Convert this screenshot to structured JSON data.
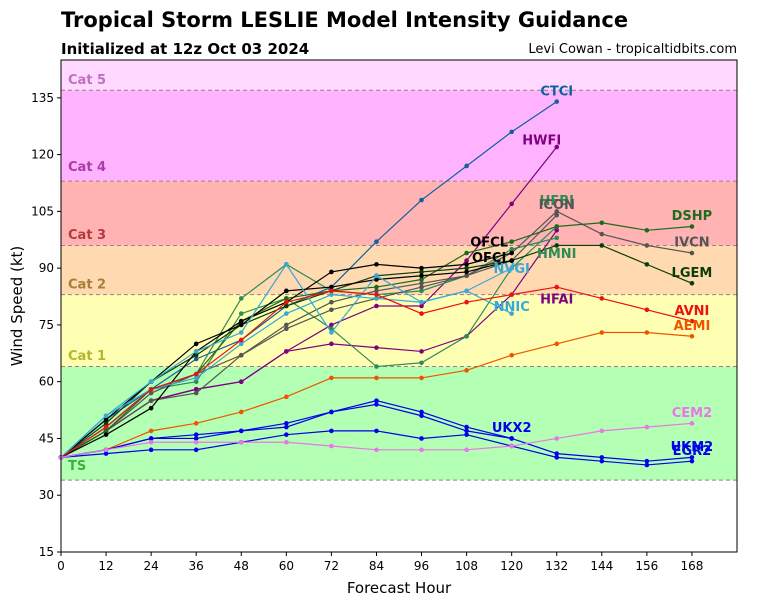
{
  "header": {
    "title": "Tropical Storm LESLIE Model Intensity Guidance",
    "subtitle": "Initialized at 12z Oct 03 2024",
    "credit": "Levi Cowan - tropicaltidbits.com"
  },
  "chart_data": {
    "type": "line",
    "title": "Tropical Storm LESLIE Model Intensity Guidance",
    "subtitle": "Initialized at 12z Oct 03 2024",
    "xlabel": "Forecast Hour",
    "ylabel": "Wind Speed (kt)",
    "xlim": [
      0,
      180
    ],
    "ylim": [
      15,
      145
    ],
    "xticks": [
      0,
      12,
      24,
      36,
      48,
      60,
      72,
      84,
      96,
      108,
      120,
      132,
      144,
      156,
      168
    ],
    "yticks": [
      15,
      30,
      45,
      60,
      75,
      90,
      105,
      120,
      135
    ],
    "grid": false,
    "bands": [
      {
        "label": "TS",
        "from": 34,
        "to": 64,
        "color": "#b3ffb3",
        "label_color": "#3cb043",
        "label_at": 38
      },
      {
        "label": "Cat 1",
        "from": 64,
        "to": 83,
        "color": "#ffffb3",
        "label_color": "#b5b52e",
        "label_at": 67
      },
      {
        "label": "Cat 2",
        "from": 83,
        "to": 96,
        "color": "#ffd9b0",
        "label_color": "#a97d3a",
        "label_at": 86
      },
      {
        "label": "Cat 3",
        "from": 96,
        "to": 113,
        "color": "#ffb3b3",
        "label_color": "#b23b3b",
        "label_at": 99
      },
      {
        "label": "Cat 4",
        "from": 113,
        "to": 137,
        "color": "#ffb3ff",
        "label_color": "#a83ca8",
        "label_at": 117
      },
      {
        "label": "Cat 5",
        "from": 137,
        "to": 145,
        "color": "#ffd9ff",
        "label_color": "#c070c0",
        "label_at": 140
      }
    ],
    "series": [
      {
        "name": "CTCI",
        "color": "#1060a0",
        "x": [
          0,
          12,
          24,
          36,
          48,
          60,
          72,
          84,
          96,
          108,
          120,
          132
        ],
        "y": [
          40,
          50,
          58,
          66,
          71,
          80,
          85,
          97,
          108,
          117,
          126,
          134
        ],
        "label_x": 132,
        "label_y": 137
      },
      {
        "name": "HWFI",
        "color": "#800080",
        "x": [
          0,
          12,
          24,
          36,
          48,
          60,
          72,
          84,
          96,
          108,
          120,
          132
        ],
        "y": [
          40,
          47,
          55,
          58,
          60,
          68,
          70,
          69,
          68,
          72,
          83,
          100
        ],
        "label_x": 128,
        "label_y": 124
      },
      {
        "name": "HFAI",
        "color": "#800080",
        "x": [
          0,
          12,
          24,
          36,
          48,
          60,
          72,
          84,
          96,
          108,
          120,
          132
        ],
        "y": [
          40,
          47,
          55,
          58,
          60,
          68,
          75,
          80,
          80,
          92,
          107,
          122
        ],
        "label_x": 132,
        "label_y": 82
      },
      {
        "name": "HFBI",
        "color": "#2e8b57",
        "x": [
          0,
          12,
          24,
          36,
          48,
          60,
          72,
          84,
          96,
          108,
          120,
          132
        ],
        "y": [
          40,
          48,
          58,
          60,
          78,
          82,
          74,
          64,
          65,
          72,
          90,
          101
        ],
        "label_x": 132,
        "label_y": 108
      },
      {
        "name": "HMNI",
        "color": "#2e8b57",
        "x": [
          0,
          12,
          24,
          36,
          48,
          60,
          72,
          84,
          96,
          108,
          120,
          132
        ],
        "y": [
          40,
          48,
          58,
          62,
          82,
          91,
          84,
          83,
          84,
          88,
          95,
          98
        ],
        "label_x": 132,
        "label_y": 94
      },
      {
        "name": "ICON",
        "color": "#555555",
        "x": [
          0,
          12,
          24,
          36,
          48,
          60,
          72,
          84,
          96,
          108,
          120,
          132
        ],
        "y": [
          40,
          47,
          55,
          57,
          67,
          75,
          81,
          84,
          86,
          88,
          92,
          104
        ],
        "label_x": 132,
        "label_y": 107
      },
      {
        "name": "IVCN",
        "color": "#555555",
        "x": [
          0,
          12,
          24,
          36,
          48,
          60,
          72,
          84,
          96,
          108,
          120,
          132,
          144,
          156,
          168
        ],
        "y": [
          40,
          47,
          57,
          62,
          67,
          74,
          79,
          82,
          85,
          88,
          94,
          105,
          99,
          96,
          94
        ],
        "label_x": 168,
        "label_y": 97
      },
      {
        "name": "DSHP",
        "color": "#1d6b1d",
        "x": [
          0,
          12,
          24,
          36,
          48,
          60,
          72,
          84,
          96,
          108,
          120,
          132,
          144,
          156,
          168
        ],
        "y": [
          40,
          47,
          58,
          62,
          76,
          82,
          84,
          85,
          87,
          94,
          97,
          101,
          102,
          100,
          101
        ],
        "label_x": 168,
        "label_y": 104
      },
      {
        "name": "LGEM",
        "color": "#0b3d0b",
        "x": [
          0,
          12,
          24,
          36,
          48,
          60,
          72,
          84,
          96,
          108,
          120,
          132,
          144,
          156,
          168
        ],
        "y": [
          40,
          49,
          60,
          67,
          75,
          80,
          84,
          88,
          89,
          90,
          92,
          96,
          96,
          91,
          86
        ],
        "label_x": 168,
        "label_y": 89
      },
      {
        "name": "OFCL",
        "color": "#000000",
        "x": [
          0,
          12,
          24,
          36,
          48,
          60,
          72,
          84,
          96,
          108,
          120
        ],
        "y": [
          40,
          50,
          60,
          70,
          75,
          84,
          85,
          87,
          88,
          89,
          92
        ],
        "label_x": 114,
        "label_y": 97
      },
      {
        "name": "OFCI",
        "color": "#000000",
        "x": [
          0,
          12,
          24,
          36,
          48,
          60,
          72,
          84,
          96,
          108,
          120
        ],
        "y": [
          40,
          46,
          53,
          68,
          76,
          81,
          89,
          91,
          90,
          91,
          94
        ],
        "label_x": 114,
        "label_y": 93
      },
      {
        "name": "NVGI",
        "color": "#38a8d8",
        "x": [
          0,
          12,
          24,
          36,
          48,
          60,
          72,
          84,
          96,
          108,
          120
        ],
        "y": [
          40,
          51,
          60,
          68,
          73,
          91,
          73,
          88,
          81,
          84,
          90
        ],
        "label_x": 120,
        "label_y": 90
      },
      {
        "name": "NNIC",
        "color": "#38a8d8",
        "x": [
          0,
          12,
          24,
          36,
          48,
          60,
          72,
          84,
          96,
          108,
          120
        ],
        "y": [
          40,
          51,
          58,
          61,
          70,
          78,
          83,
          82,
          81,
          84,
          78
        ],
        "label_x": 120,
        "label_y": 80
      },
      {
        "name": "AVNI",
        "color": "#ee1111",
        "x": [
          0,
          12,
          24,
          36,
          48,
          60,
          72,
          84,
          96,
          108,
          120,
          132,
          144,
          156,
          168
        ],
        "y": [
          40,
          48,
          58,
          62,
          71,
          81,
          84,
          83,
          78,
          81,
          83,
          85,
          82,
          79,
          76
        ],
        "label_x": 168,
        "label_y": 79
      },
      {
        "name": "AEMI",
        "color": "#ee5500",
        "x": [
          0,
          12,
          24,
          36,
          48,
          60,
          72,
          84,
          96,
          108,
          120,
          132,
          144,
          156,
          168
        ],
        "y": [
          40,
          42,
          47,
          49,
          52,
          56,
          61,
          61,
          61,
          63,
          67,
          70,
          73,
          73,
          72
        ],
        "label_x": 168,
        "label_y": 75
      },
      {
        "name": "UKX2",
        "color": "#0000ee",
        "x": [
          0,
          12,
          24,
          36,
          48,
          60,
          72,
          84,
          96,
          108,
          120
        ],
        "y": [
          40,
          42,
          45,
          45,
          47,
          49,
          52,
          55,
          52,
          48,
          45
        ],
        "label_x": 120,
        "label_y": 48
      },
      {
        "name": "UKM2",
        "color": "#0000ee",
        "x": [
          0,
          12,
          24,
          36,
          48,
          60,
          72,
          84,
          96,
          108,
          120,
          132,
          144,
          156,
          168
        ],
        "y": [
          40,
          42,
          45,
          46,
          47,
          48,
          52,
          54,
          51,
          47,
          45,
          41,
          40,
          39,
          40
        ],
        "label_x": 168,
        "label_y": 43
      },
      {
        "name": "EGR2",
        "color": "#0000ee",
        "x": [
          0,
          12,
          24,
          36,
          48,
          60,
          72,
          84,
          96,
          108,
          120,
          132,
          144,
          156,
          168
        ],
        "y": [
          40,
          41,
          42,
          42,
          44,
          46,
          47,
          47,
          45,
          46,
          43,
          40,
          39,
          38,
          39
        ],
        "label_x": 168,
        "label_y": 42
      },
      {
        "name": "CEM2",
        "color": "#e878e8",
        "x": [
          0,
          12,
          24,
          36,
          48,
          60,
          72,
          84,
          96,
          108,
          120,
          132,
          144,
          156,
          168
        ],
        "y": [
          40,
          42,
          44,
          44,
          44,
          44,
          43,
          42,
          42,
          42,
          43,
          45,
          47,
          48,
          49
        ],
        "label_x": 168,
        "label_y": 52
      }
    ]
  }
}
